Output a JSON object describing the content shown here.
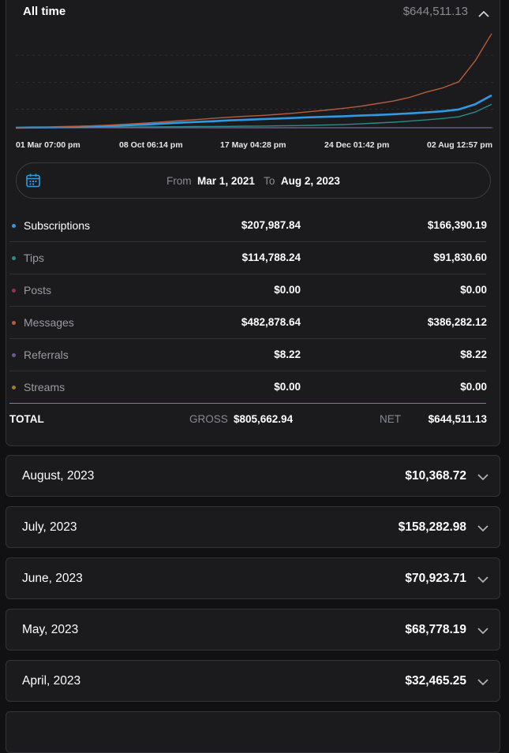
{
  "header": {
    "title": "All time",
    "total": "$644,511.13",
    "toggle_icon": "chevron-up-icon"
  },
  "chart_data": {
    "type": "line",
    "x_ticks": [
      "01 Mar 07:00 pm",
      "08 Oct 06:14 pm",
      "17 May 04:28 pm",
      "24 Dec 01:42 pm",
      "02 Aug 12:57 pm"
    ],
    "grid": true,
    "series": [
      {
        "name": "Messages",
        "color": "#b85c3b",
        "values": [
          0.0,
          0.2,
          0.5,
          0.9,
          1.4,
          2.0,
          2.8,
          3.6,
          4.6,
          5.6,
          6.8,
          7.8,
          9.0,
          10.0,
          11.0,
          11.8,
          12.8,
          14.0,
          15.5,
          17.0,
          18.6,
          20.5,
          23.0,
          25.5,
          29.0,
          34.0,
          38.0,
          44.0,
          64.0,
          90.0
        ]
      },
      {
        "name": "Subscriptions",
        "color": "#2f9ae4",
        "values": [
          0.0,
          0.2,
          0.4,
          0.7,
          1.0,
          1.4,
          1.9,
          2.5,
          3.2,
          4.0,
          4.8,
          5.5,
          6.2,
          7.0,
          7.6,
          8.2,
          8.8,
          9.4,
          10.0,
          10.5,
          11.0,
          11.6,
          12.2,
          12.9,
          13.7,
          14.6,
          15.7,
          17.5,
          22.5,
          31.0
        ]
      },
      {
        "name": "Tips",
        "color": "#2b8a8c",
        "values": [
          0.0,
          0.1,
          0.2,
          0.3,
          0.4,
          0.5,
          0.6,
          0.7,
          0.8,
          0.9,
          1.0,
          1.1,
          1.2,
          1.3,
          1.5,
          1.6,
          1.8,
          2.0,
          2.3,
          2.7,
          3.1,
          3.7,
          4.5,
          5.3,
          6.3,
          7.5,
          8.8,
          10.5,
          15.0,
          22.5
        ]
      },
      {
        "name": "Referrals",
        "color": "#6b5a8a",
        "values": [
          0,
          0,
          0,
          0,
          0,
          0,
          0,
          0,
          0,
          0,
          0,
          0,
          0,
          0,
          0,
          0,
          0,
          0,
          0,
          0,
          0,
          0,
          0,
          0,
          0,
          0,
          0,
          0,
          0,
          0.1
        ]
      }
    ]
  },
  "range": {
    "from_label": "From",
    "from_value": "Mar 1, 2021",
    "to_label": "To",
    "to_value": "Aug 2, 2023",
    "icon": "calendar-icon"
  },
  "rows": [
    {
      "name": "Subscriptions",
      "gross": "$207,987.84",
      "net": "$166,390.19",
      "color": "#2f9ae4",
      "text_color": "#ffffff"
    },
    {
      "name": "Tips",
      "gross": "$114,788.24",
      "net": "$91,830.60",
      "color": "#2b8a8c",
      "text_color": "#9a9aa2"
    },
    {
      "name": "Posts",
      "gross": "$0.00",
      "net": "$0.00",
      "color": "#9c2f4e",
      "text_color": "#9a9aa2"
    },
    {
      "name": "Messages",
      "gross": "$482,878.64",
      "net": "$386,282.12",
      "color": "#b85c3b",
      "text_color": "#9a9aa2"
    },
    {
      "name": "Referrals",
      "gross": "$8.22",
      "net": "$8.22",
      "color": "#6b5a8a",
      "text_color": "#9a9aa2"
    },
    {
      "name": "Streams",
      "gross": "$0.00",
      "net": "$0.00",
      "color": "#a67c1e",
      "text_color": "#9a9aa2"
    }
  ],
  "totals": {
    "label": "TOTAL",
    "gross_label": "GROSS",
    "gross": "$805,662.94",
    "net_label": "NET",
    "net": "$644,511.13"
  },
  "months": [
    {
      "name": "August, 2023",
      "value": "$10,368.72"
    },
    {
      "name": "July, 2023",
      "value": "$158,282.98"
    },
    {
      "name": "June, 2023",
      "value": "$70,923.71"
    },
    {
      "name": "May, 2023",
      "value": "$68,778.19"
    },
    {
      "name": "April, 2023",
      "value": "$32,465.25"
    }
  ]
}
